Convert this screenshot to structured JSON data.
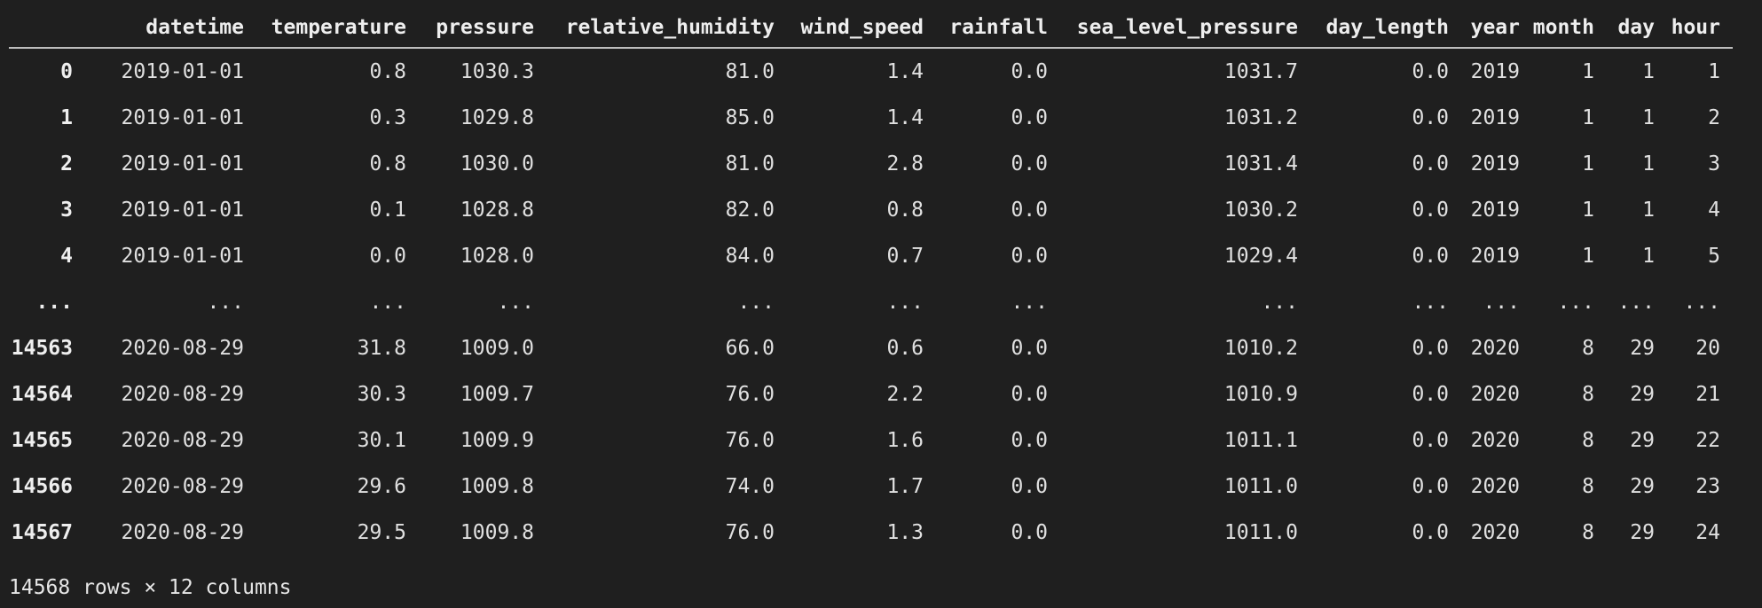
{
  "dataframe": {
    "columns": [
      "datetime",
      "temperature",
      "pressure",
      "relative_humidity",
      "wind_speed",
      "rainfall",
      "sea_level_pressure",
      "day_length",
      "year",
      "month",
      "day",
      "hour"
    ],
    "rows": [
      {
        "index": "0",
        "cells": [
          "2019-01-01",
          "0.8",
          "1030.3",
          "81.0",
          "1.4",
          "0.0",
          "1031.7",
          "0.0",
          "2019",
          "1",
          "1",
          "1"
        ]
      },
      {
        "index": "1",
        "cells": [
          "2019-01-01",
          "0.3",
          "1029.8",
          "85.0",
          "1.4",
          "0.0",
          "1031.2",
          "0.0",
          "2019",
          "1",
          "1",
          "2"
        ]
      },
      {
        "index": "2",
        "cells": [
          "2019-01-01",
          "0.8",
          "1030.0",
          "81.0",
          "2.8",
          "0.0",
          "1031.4",
          "0.0",
          "2019",
          "1",
          "1",
          "3"
        ]
      },
      {
        "index": "3",
        "cells": [
          "2019-01-01",
          "0.1",
          "1028.8",
          "82.0",
          "0.8",
          "0.0",
          "1030.2",
          "0.0",
          "2019",
          "1",
          "1",
          "4"
        ]
      },
      {
        "index": "4",
        "cells": [
          "2019-01-01",
          "0.0",
          "1028.0",
          "84.0",
          "0.7",
          "0.0",
          "1029.4",
          "0.0",
          "2019",
          "1",
          "1",
          "5"
        ]
      },
      {
        "index": "...",
        "cells": [
          "...",
          "...",
          "...",
          "...",
          "...",
          "...",
          "...",
          "...",
          "...",
          "...",
          "...",
          "..."
        ]
      },
      {
        "index": "14563",
        "cells": [
          "2020-08-29",
          "31.8",
          "1009.0",
          "66.0",
          "0.6",
          "0.0",
          "1010.2",
          "0.0",
          "2020",
          "8",
          "29",
          "20"
        ]
      },
      {
        "index": "14564",
        "cells": [
          "2020-08-29",
          "30.3",
          "1009.7",
          "76.0",
          "2.2",
          "0.0",
          "1010.9",
          "0.0",
          "2020",
          "8",
          "29",
          "21"
        ]
      },
      {
        "index": "14565",
        "cells": [
          "2020-08-29",
          "30.1",
          "1009.9",
          "76.0",
          "1.6",
          "0.0",
          "1011.1",
          "0.0",
          "2020",
          "8",
          "29",
          "22"
        ]
      },
      {
        "index": "14566",
        "cells": [
          "2020-08-29",
          "29.6",
          "1009.8",
          "74.0",
          "1.7",
          "0.0",
          "1011.0",
          "0.0",
          "2020",
          "8",
          "29",
          "23"
        ]
      },
      {
        "index": "14567",
        "cells": [
          "2020-08-29",
          "29.5",
          "1009.8",
          "76.0",
          "1.3",
          "0.0",
          "1011.0",
          "0.0",
          "2020",
          "8",
          "29",
          "24"
        ]
      }
    ],
    "footer": "14568 rows × 12 columns"
  }
}
